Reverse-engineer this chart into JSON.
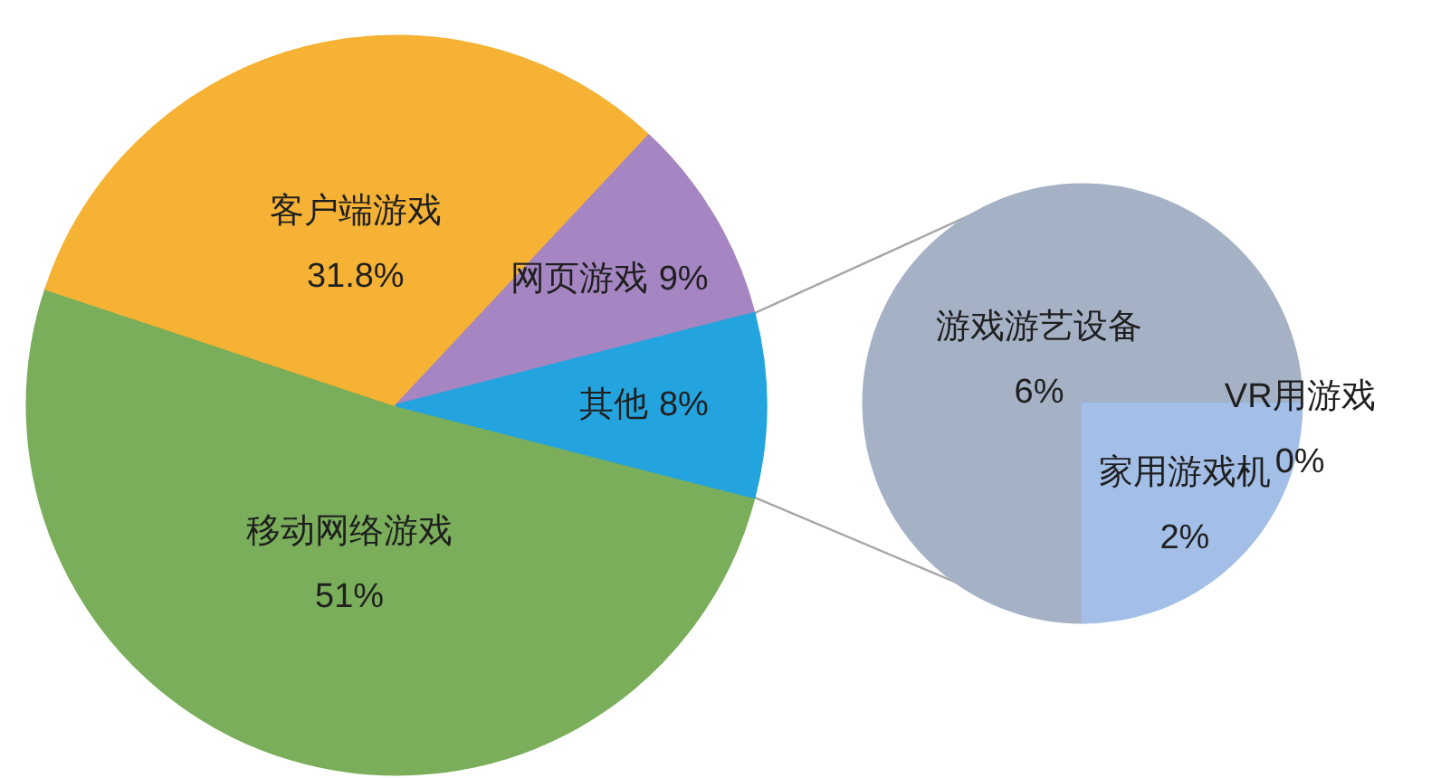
{
  "chart_data": [
    {
      "type": "pie",
      "categories": [
        "移动网络游戏",
        "客户端游戏",
        "网页游戏",
        "其他"
      ],
      "values": [
        51,
        31.8,
        9,
        8
      ],
      "colors": [
        "#7aae5a",
        "#f5b234",
        "#a686c2",
        "#24a4de"
      ],
      "value_labels": [
        "51%",
        "31.8%",
        "9%",
        "8%"
      ]
    },
    {
      "type": "pie",
      "categories": [
        "游戏游艺设备",
        "VR用游戏",
        "家用游戏机"
      ],
      "values": [
        6,
        0,
        2
      ],
      "colors": [
        "#a5b2c6",
        "#6a86b8",
        "#a3bee7"
      ],
      "value_labels": [
        "6%",
        "0%",
        "2%"
      ]
    }
  ]
}
